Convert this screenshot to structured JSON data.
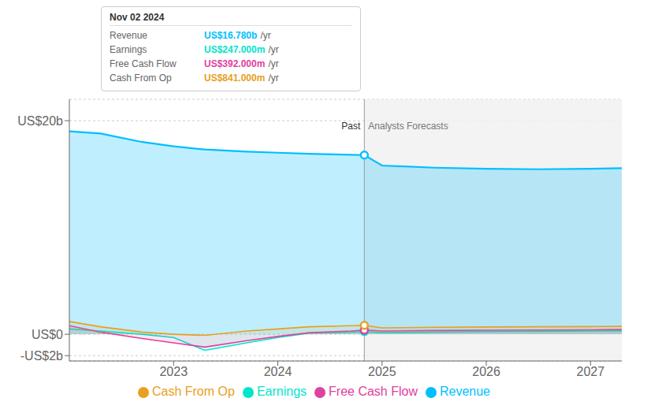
{
  "chart_data": {
    "type": "area",
    "x": [
      2022.0,
      2022.3,
      2022.7,
      2023.0,
      2023.3,
      2023.7,
      2024.0,
      2024.3,
      2024.7,
      2024.83,
      2024.83,
      2025.0,
      2025.5,
      2026.0,
      2026.5,
      2027.0,
      2027.3
    ],
    "xlim": [
      2022.0,
      2027.3
    ],
    "xticks": [
      2023,
      2024,
      2025,
      2026,
      2027
    ],
    "ylim": [
      -2.5,
      22.0
    ],
    "yticks": [
      {
        "value": -2,
        "label": "-US$2b"
      },
      {
        "value": 0,
        "label": "US$0"
      },
      {
        "value": 20,
        "label": "US$20b"
      }
    ],
    "grid": true,
    "legend": "bottom",
    "series": [
      {
        "name": "Revenue",
        "color": "#00bfff",
        "values": [
          19.0,
          18.8,
          18.0,
          17.6,
          17.3,
          17.1,
          17.0,
          16.9,
          16.8,
          16.78,
          16.78,
          15.8,
          15.6,
          15.5,
          15.45,
          15.5,
          15.55
        ]
      },
      {
        "name": "Earnings",
        "color": "#00e5cc",
        "values": [
          0.5,
          0.3,
          0.0,
          -0.3,
          -1.5,
          -0.8,
          -0.3,
          0.1,
          0.2,
          0.247,
          0.247,
          0.15,
          0.2,
          0.25,
          0.28,
          0.3,
          0.32
        ]
      },
      {
        "name": "Free Cash Flow",
        "color": "#e040a0",
        "values": [
          0.8,
          0.2,
          -0.4,
          -0.8,
          -1.2,
          -0.6,
          -0.2,
          0.15,
          0.3,
          0.392,
          0.392,
          0.3,
          0.35,
          0.38,
          0.4,
          0.42,
          0.44
        ]
      },
      {
        "name": "Cash From Op",
        "color": "#e8a020",
        "values": [
          1.2,
          0.7,
          0.2,
          0.0,
          -0.1,
          0.3,
          0.5,
          0.7,
          0.8,
          0.841,
          0.841,
          0.6,
          0.65,
          0.68,
          0.7,
          0.72,
          0.74
        ]
      }
    ],
    "annotations": [
      {
        "text": "Past",
        "x": 2024.83,
        "y": 19.5
      },
      {
        "text": "Analysts Forecasts",
        "x": 2024.83,
        "y": 19.5
      }
    ],
    "tooltip": {
      "title": "Nov 02 2024",
      "rows": [
        {
          "name": "Revenue",
          "label": "US$16.780b",
          "unit": "/yr"
        },
        {
          "name": "Earnings",
          "label": "US$247.000m",
          "unit": "/yr"
        },
        {
          "name": "Free Cash Flow",
          "label": "US$392.000m",
          "unit": "/yr"
        },
        {
          "name": "Cash From Op",
          "label": "US$841.000m",
          "unit": "/yr"
        }
      ]
    }
  }
}
